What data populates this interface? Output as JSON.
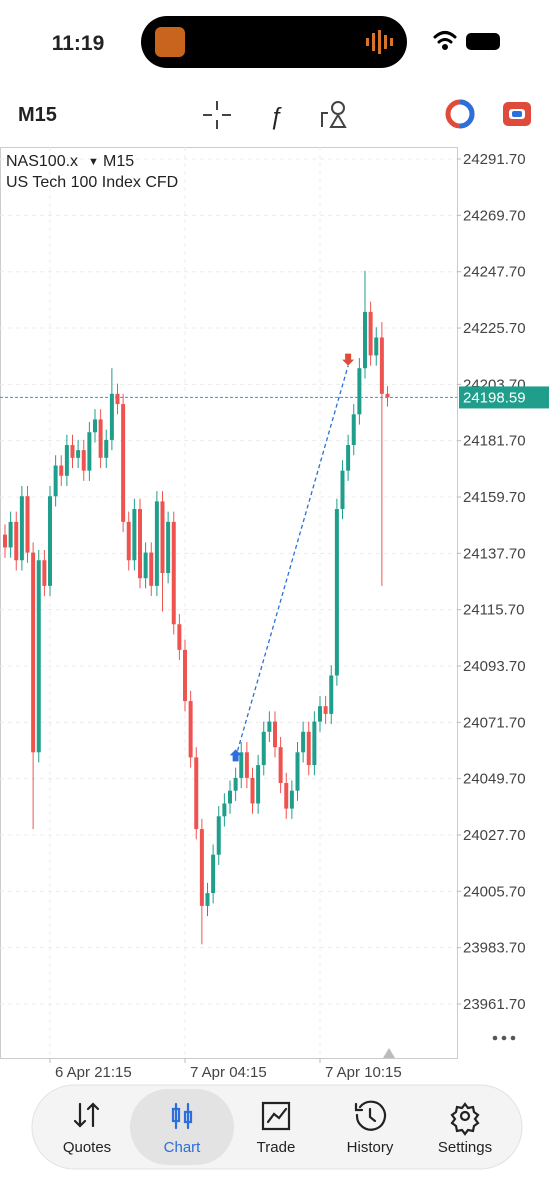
{
  "status_bar": {
    "time": "11:19"
  },
  "toolbar": {
    "timeframe": "M15"
  },
  "chart_data": {
    "type": "candlestick",
    "symbol": "NAS100.x",
    "timeframe": "M15",
    "description": "US Tech 100 Index CFD",
    "up_color": "#1e9e8b",
    "down_color": "#ef5350",
    "grid": true,
    "categories": [
      null,
      null,
      null,
      null,
      null,
      null,
      null,
      null,
      "6 Apr 21:15",
      null,
      null,
      null,
      null,
      null,
      null,
      null,
      null,
      null,
      null,
      null,
      null,
      null,
      null,
      null,
      null,
      null,
      null,
      null,
      null,
      null,
      null,
      null,
      "7 Apr 04:15",
      null,
      null,
      null,
      null,
      null,
      null,
      null,
      null,
      null,
      null,
      null,
      null,
      null,
      null,
      null,
      null,
      null,
      null,
      null,
      null,
      null,
      null,
      null,
      "7 Apr 10:15",
      null,
      null,
      null,
      null,
      null,
      null,
      null,
      null,
      null,
      null,
      null,
      null
    ],
    "series": {
      "open": [
        24145,
        24140,
        24150,
        24135,
        24160,
        24138,
        24060,
        24135,
        24125,
        24160,
        24172,
        24168,
        24180,
        24175,
        24178,
        24170,
        24185,
        24190,
        24175,
        24182,
        24200,
        24196,
        24150,
        24135,
        24155,
        24128,
        24138,
        24125,
        24158,
        24130,
        24150,
        24110,
        24100,
        24080,
        24058,
        24030,
        24000,
        24005,
        24020,
        24035,
        24040,
        24045,
        24050,
        24060,
        24050,
        24040,
        24055,
        24068,
        24072,
        24062,
        24048,
        24038,
        24045,
        24060,
        24068,
        24055,
        24072,
        24078,
        24075,
        24090,
        24155,
        24170,
        24180,
        24192,
        24210,
        24232,
        24215,
        24222,
        24200
      ],
      "high": [
        24149,
        24154,
        24154,
        24164,
        24164,
        24142,
        24139,
        24139,
        24164,
        24176,
        24176,
        24184,
        24184,
        24182,
        24182,
        24189,
        24194,
        24194,
        24186,
        24210,
        24204,
        24200,
        24154,
        24159,
        24159,
        24142,
        24142,
        24162,
        24162,
        24154,
        24154,
        24114,
        24104,
        24084,
        24062,
        24034,
        24009,
        24024,
        24039,
        24044,
        24049,
        24054,
        24064,
        24064,
        24054,
        24059,
        24072,
        24076,
        24076,
        24066,
        24052,
        24049,
        24064,
        24072,
        24072,
        24076,
        24082,
        24082,
        24094,
        24159,
        24174,
        24184,
        24196,
        24214,
        24248,
        24236,
        24226,
        24228,
        24203
      ],
      "low": [
        24136,
        24136,
        24131,
        24131,
        24134,
        24030,
        24056,
        24121,
        24121,
        24156,
        24164,
        24164,
        24171,
        24171,
        24166,
        24166,
        24181,
        24171,
        24171,
        24178,
        24192,
        24146,
        24131,
        24131,
        24124,
        24124,
        24121,
        24121,
        24115,
        24126,
        24106,
        24096,
        24076,
        24054,
        24026,
        23985,
        23996,
        24001,
        24016,
        24031,
        24036,
        24041,
        24046,
        24046,
        24036,
        24036,
        24051,
        24064,
        24058,
        24044,
        24034,
        24034,
        24041,
        24056,
        24051,
        24051,
        24068,
        24071,
        24071,
        24086,
        24151,
        24166,
        24176,
        24188,
        24206,
        24211,
        24211,
        24125,
        24195
      ],
      "close": [
        24140,
        24150,
        24135,
        24160,
        24138,
        24060,
        24135,
        24125,
        24160,
        24172,
        24168,
        24180,
        24175,
        24178,
        24170,
        24185,
        24190,
        24175,
        24182,
        24200,
        24196,
        24150,
        24135,
        24155,
        24128,
        24138,
        24125,
        24158,
        24130,
        24150,
        24110,
        24100,
        24080,
        24058,
        24030,
        24000,
        24005,
        24020,
        24035,
        24040,
        24045,
        24050,
        24060,
        24050,
        24040,
        24055,
        24068,
        24072,
        24062,
        24048,
        24038,
        24045,
        24060,
        24068,
        24055,
        24072,
        24078,
        24075,
        24090,
        24155,
        24170,
        24180,
        24192,
        24210,
        24232,
        24215,
        24222,
        24200,
        24198.59
      ]
    },
    "last_price": 24198.59,
    "trades": {
      "buy": {
        "index": 41,
        "price": 24058
      },
      "sell": {
        "index": 61,
        "price": 24211
      }
    },
    "ylim": [
      23940.6,
      24296.4
    ],
    "yticks": [
      {
        "value": 24291.7,
        "label": "24291.70"
      },
      {
        "value": 24269.7,
        "label": "24269.70"
      },
      {
        "value": 24247.7,
        "label": "24247.70"
      },
      {
        "value": 24225.7,
        "label": "24225.70"
      },
      {
        "value": 24203.7,
        "label": "24203.70"
      },
      {
        "value": 24181.7,
        "label": "24181.70"
      },
      {
        "value": 24159.7,
        "label": "24159.70"
      },
      {
        "value": 24137.7,
        "label": "24137.70"
      },
      {
        "value": 24115.7,
        "label": "24115.70"
      },
      {
        "value": 24093.7,
        "label": "24093.70"
      },
      {
        "value": 24071.7,
        "label": "24071.70"
      },
      {
        "value": 24049.7,
        "label": "24049.70"
      },
      {
        "value": 24027.7,
        "label": "24027.70"
      },
      {
        "value": 24005.7,
        "label": "24005.70"
      },
      {
        "value": 23983.7,
        "label": "23983.70"
      },
      {
        "value": 23961.7,
        "label": "23961.70"
      }
    ]
  },
  "nav": {
    "items": [
      "Quotes",
      "Chart",
      "Trade",
      "History",
      "Settings"
    ],
    "active": 1
  }
}
